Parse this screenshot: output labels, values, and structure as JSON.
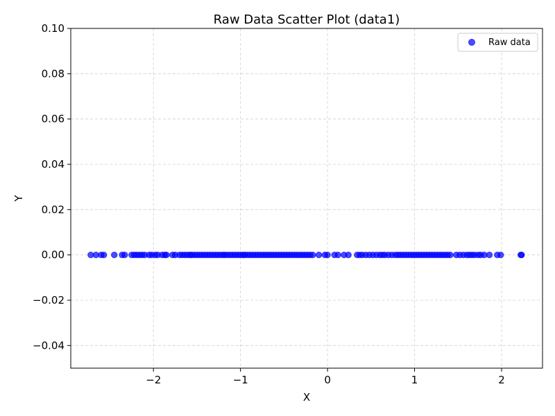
{
  "chart_data": {
    "type": "scatter",
    "title": "Raw Data Scatter Plot (data1)",
    "xlabel": "X",
    "ylabel": "Y",
    "xlim": [
      -2.95,
      2.47
    ],
    "ylim": [
      -0.05,
      0.1
    ],
    "xticks": [
      -2,
      -1,
      0,
      1,
      2
    ],
    "xtick_labels": [
      "−2",
      "−1",
      "0",
      "1",
      "2"
    ],
    "yticks": [
      -0.04,
      -0.02,
      0.0,
      0.02,
      0.04,
      0.06,
      0.08,
      0.1
    ],
    "ytick_labels": [
      "−0.04",
      "−0.02",
      "0.00",
      "0.02",
      "0.04",
      "0.06",
      "0.08",
      "0.10"
    ],
    "grid": true,
    "legend": {
      "position": "top-right",
      "entries": [
        "Raw data"
      ]
    },
    "colors": {
      "points": "#0000ff",
      "grid": "#b0b0b0"
    },
    "series": [
      {
        "name": "Raw data",
        "x": [
          -2.72,
          -2.66,
          -2.6,
          -2.57,
          -2.45,
          -2.36,
          -2.33,
          -2.25,
          -2.22,
          -2.19,
          -2.16,
          -2.13,
          -2.1,
          -2.05,
          -2.02,
          -1.98,
          -1.95,
          -1.9,
          -1.87,
          -1.85,
          -1.78,
          -1.75,
          -1.7,
          -1.67,
          -1.64,
          -1.61,
          -1.58,
          -1.56,
          -1.53,
          -1.5,
          -1.47,
          -1.44,
          -1.41,
          -1.38,
          -1.35,
          -1.32,
          -1.29,
          -1.26,
          -1.23,
          -1.2,
          -1.18,
          -1.15,
          -1.12,
          -1.09,
          -1.06,
          -1.03,
          -1.0,
          -0.97,
          -0.95,
          -0.92,
          -0.89,
          -0.86,
          -0.83,
          -0.8,
          -0.77,
          -0.74,
          -0.71,
          -0.68,
          -0.65,
          -0.62,
          -0.59,
          -0.56,
          -0.53,
          -0.5,
          -0.47,
          -0.44,
          -0.41,
          -0.38,
          -0.35,
          -0.32,
          -0.29,
          -0.26,
          -0.23,
          -0.2,
          -0.17,
          -0.1,
          -0.03,
          0.0,
          0.08,
          0.12,
          0.19,
          0.24,
          0.34,
          0.37,
          0.4,
          0.44,
          0.48,
          0.52,
          0.56,
          0.6,
          0.63,
          0.66,
          0.7,
          0.74,
          0.78,
          0.81,
          0.84,
          0.87,
          0.9,
          0.93,
          0.96,
          0.99,
          1.02,
          1.05,
          1.08,
          1.11,
          1.14,
          1.17,
          1.2,
          1.23,
          1.26,
          1.29,
          1.32,
          1.35,
          1.38,
          1.41,
          1.48,
          1.52,
          1.56,
          1.6,
          1.63,
          1.66,
          1.69,
          1.73,
          1.76,
          1.8,
          1.86,
          1.95,
          1.99,
          2.22,
          2.23
        ],
        "y": [
          0,
          0,
          0,
          0,
          0,
          0,
          0,
          0,
          0,
          0,
          0,
          0,
          0,
          0,
          0,
          0,
          0,
          0,
          0,
          0,
          0,
          0,
          0,
          0,
          0,
          0,
          0,
          0,
          0,
          0,
          0,
          0,
          0,
          0,
          0,
          0,
          0,
          0,
          0,
          0,
          0,
          0,
          0,
          0,
          0,
          0,
          0,
          0,
          0,
          0,
          0,
          0,
          0,
          0,
          0,
          0,
          0,
          0,
          0,
          0,
          0,
          0,
          0,
          0,
          0,
          0,
          0,
          0,
          0,
          0,
          0,
          0,
          0,
          0,
          0,
          0,
          0,
          0,
          0,
          0,
          0,
          0,
          0,
          0,
          0,
          0,
          0,
          0,
          0,
          0,
          0,
          0,
          0,
          0,
          0,
          0,
          0,
          0,
          0,
          0,
          0,
          0,
          0,
          0,
          0,
          0,
          0,
          0,
          0,
          0,
          0,
          0,
          0,
          0,
          0,
          0,
          0,
          0,
          0,
          0,
          0,
          0,
          0,
          0,
          0,
          0,
          0,
          0,
          0,
          0,
          0
        ]
      }
    ]
  }
}
